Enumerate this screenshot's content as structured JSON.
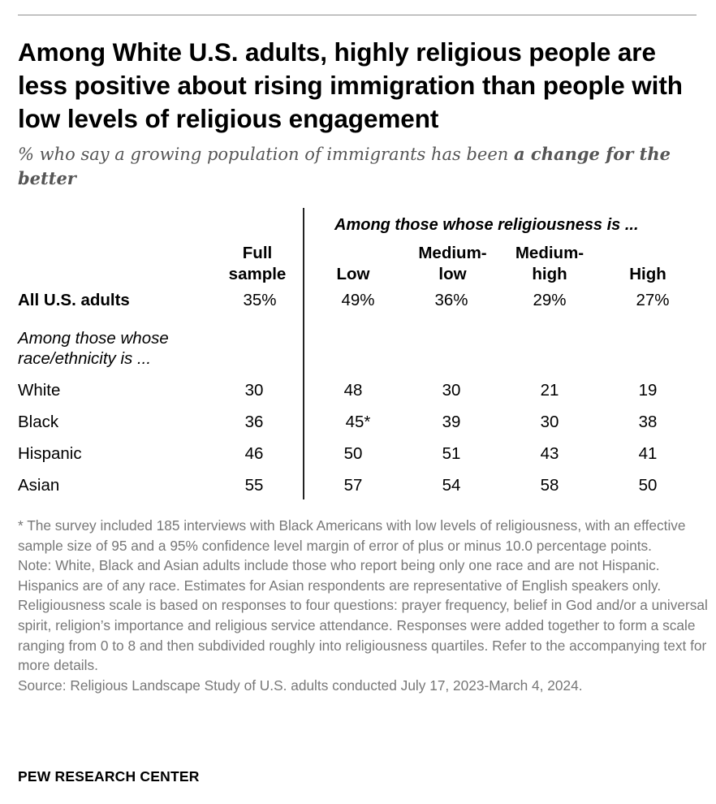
{
  "title": "Among White U.S. adults, highly religious people are less positive about rising immigration than people with low levels of religious engagement",
  "subtitle": {
    "prefix": "% who say a growing population of immigrants has been ",
    "emphasis": "a change for the better"
  },
  "table": {
    "spanner": "Among those whose religiousness is ...",
    "columns": {
      "full": [
        "Full",
        "sample"
      ],
      "low": [
        "",
        "Low"
      ],
      "medlow": [
        "Medium-",
        "low"
      ],
      "medhigh": [
        "Medium-",
        "high"
      ],
      "high": [
        "",
        "High"
      ]
    },
    "all_row": {
      "label": "All U.S. adults",
      "values": [
        "35%",
        "49%",
        "36%",
        "29%",
        "27%"
      ]
    },
    "section_label": [
      "Among those whose",
      "race/ethnicity is ..."
    ],
    "rows": [
      {
        "label": "White",
        "values": [
          "30",
          "48",
          "30",
          "21",
          "19"
        ]
      },
      {
        "label": "Black",
        "values": [
          "36",
          "45*",
          "39",
          "30",
          "38"
        ]
      },
      {
        "label": "Hispanic",
        "values": [
          "46",
          "50",
          "51",
          "43",
          "41"
        ]
      },
      {
        "label": "Asian",
        "values": [
          "55",
          "57",
          "54",
          "58",
          "50"
        ]
      }
    ]
  },
  "notes": {
    "asterisk": "* The survey included 185 interviews with Black Americans with low levels of religiousness, with an effective sample size of 95 and a 95% confidence level margin of error of plus or minus 10.0 percentage points.",
    "note": "Note: White, Black and Asian adults include those who report being only one race and are not Hispanic. Hispanics are of any race. Estimates for Asian respondents are representative of English speakers only. Religiousness scale is based on responses to four questions: prayer frequency, belief in God and/or a universal spirit, religion’s importance and religious service attendance. Responses were added together to form a scale ranging from 0 to 8 and then subdivided roughly into religiousness quartiles. Refer to the accompanying text for more details.",
    "source": "Source: Religious Landscape Study of U.S. adults conducted July 17, 2023-March 4, 2024."
  },
  "brand": "PEW RESEARCH CENTER"
}
